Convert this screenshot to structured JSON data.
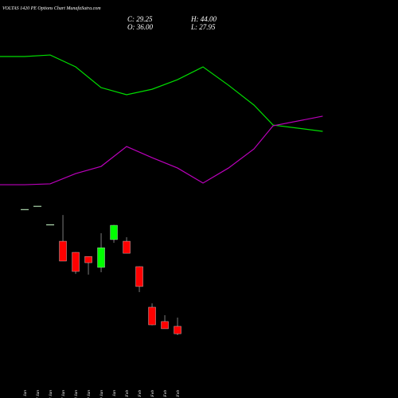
{
  "chart_data": {
    "type": "candlestick",
    "title": "VOLTAS 1420 PE Options Chart MunafaSutra.com",
    "info": [
      {
        "label": "C: 29.25"
      },
      {
        "label": "H: 44.00"
      },
      {
        "label": "O: 36.00"
      },
      {
        "label": "L: 27.95"
      }
    ],
    "categories": [
      "21 Jan",
      "22 Jan",
      "23 Jan",
      "27 Jan",
      "28 Jan",
      "29 Jan",
      "30 Jan",
      "31 Jan",
      "01 Feb",
      "03 Feb",
      "04 Feb",
      "05 Feb",
      "06 Feb"
    ],
    "open": [
      143,
      146,
      129,
      114,
      103.8,
      100,
      90,
      115.5,
      114,
      90.7,
      53.5,
      40.4,
      36
    ],
    "high": [
      143,
      146,
      129,
      138,
      104,
      100,
      121.3,
      129,
      117.7,
      91,
      57,
      46.2,
      44
    ],
    "low": [
      143,
      146,
      129,
      96,
      84,
      83.4,
      85.6,
      112.6,
      103,
      67.3,
      37,
      33.8,
      27.95
    ],
    "close": [
      143,
      146,
      129,
      95.8,
      86.3,
      94.3,
      108,
      128.6,
      103,
      72.5,
      37.4,
      33.8,
      29.25
    ],
    "up_color": "#00ff00",
    "down_color": "#ff0000",
    "flat_color": "#ccffcc",
    "ylim": [
      -29.7,
      335.1
    ],
    "xlim": [
      -1.94,
      29.31
    ],
    "series": [
      {
        "color": "#00dd00",
        "x": [
          -1.94,
          0,
          2,
          4,
          6,
          8,
          10,
          12,
          14,
          16,
          18,
          19.5,
          23.4
        ],
        "values": [
          283.3,
          283.3,
          284.7,
          273.8,
          254.8,
          248.3,
          253.3,
          262.1,
          273.8,
          257,
          238.8,
          220.5,
          214.7
        ]
      },
      {
        "color": "#bb00bb",
        "x": [
          -1.94,
          0,
          2,
          4,
          6,
          8,
          10,
          12,
          14,
          16,
          18,
          19.5,
          23.4
        ],
        "values": [
          165.8,
          165.8,
          166.6,
          176,
          182.6,
          200.8,
          190.6,
          181.1,
          167.3,
          181.1,
          198.6,
          219.8,
          228.6
        ]
      }
    ]
  }
}
